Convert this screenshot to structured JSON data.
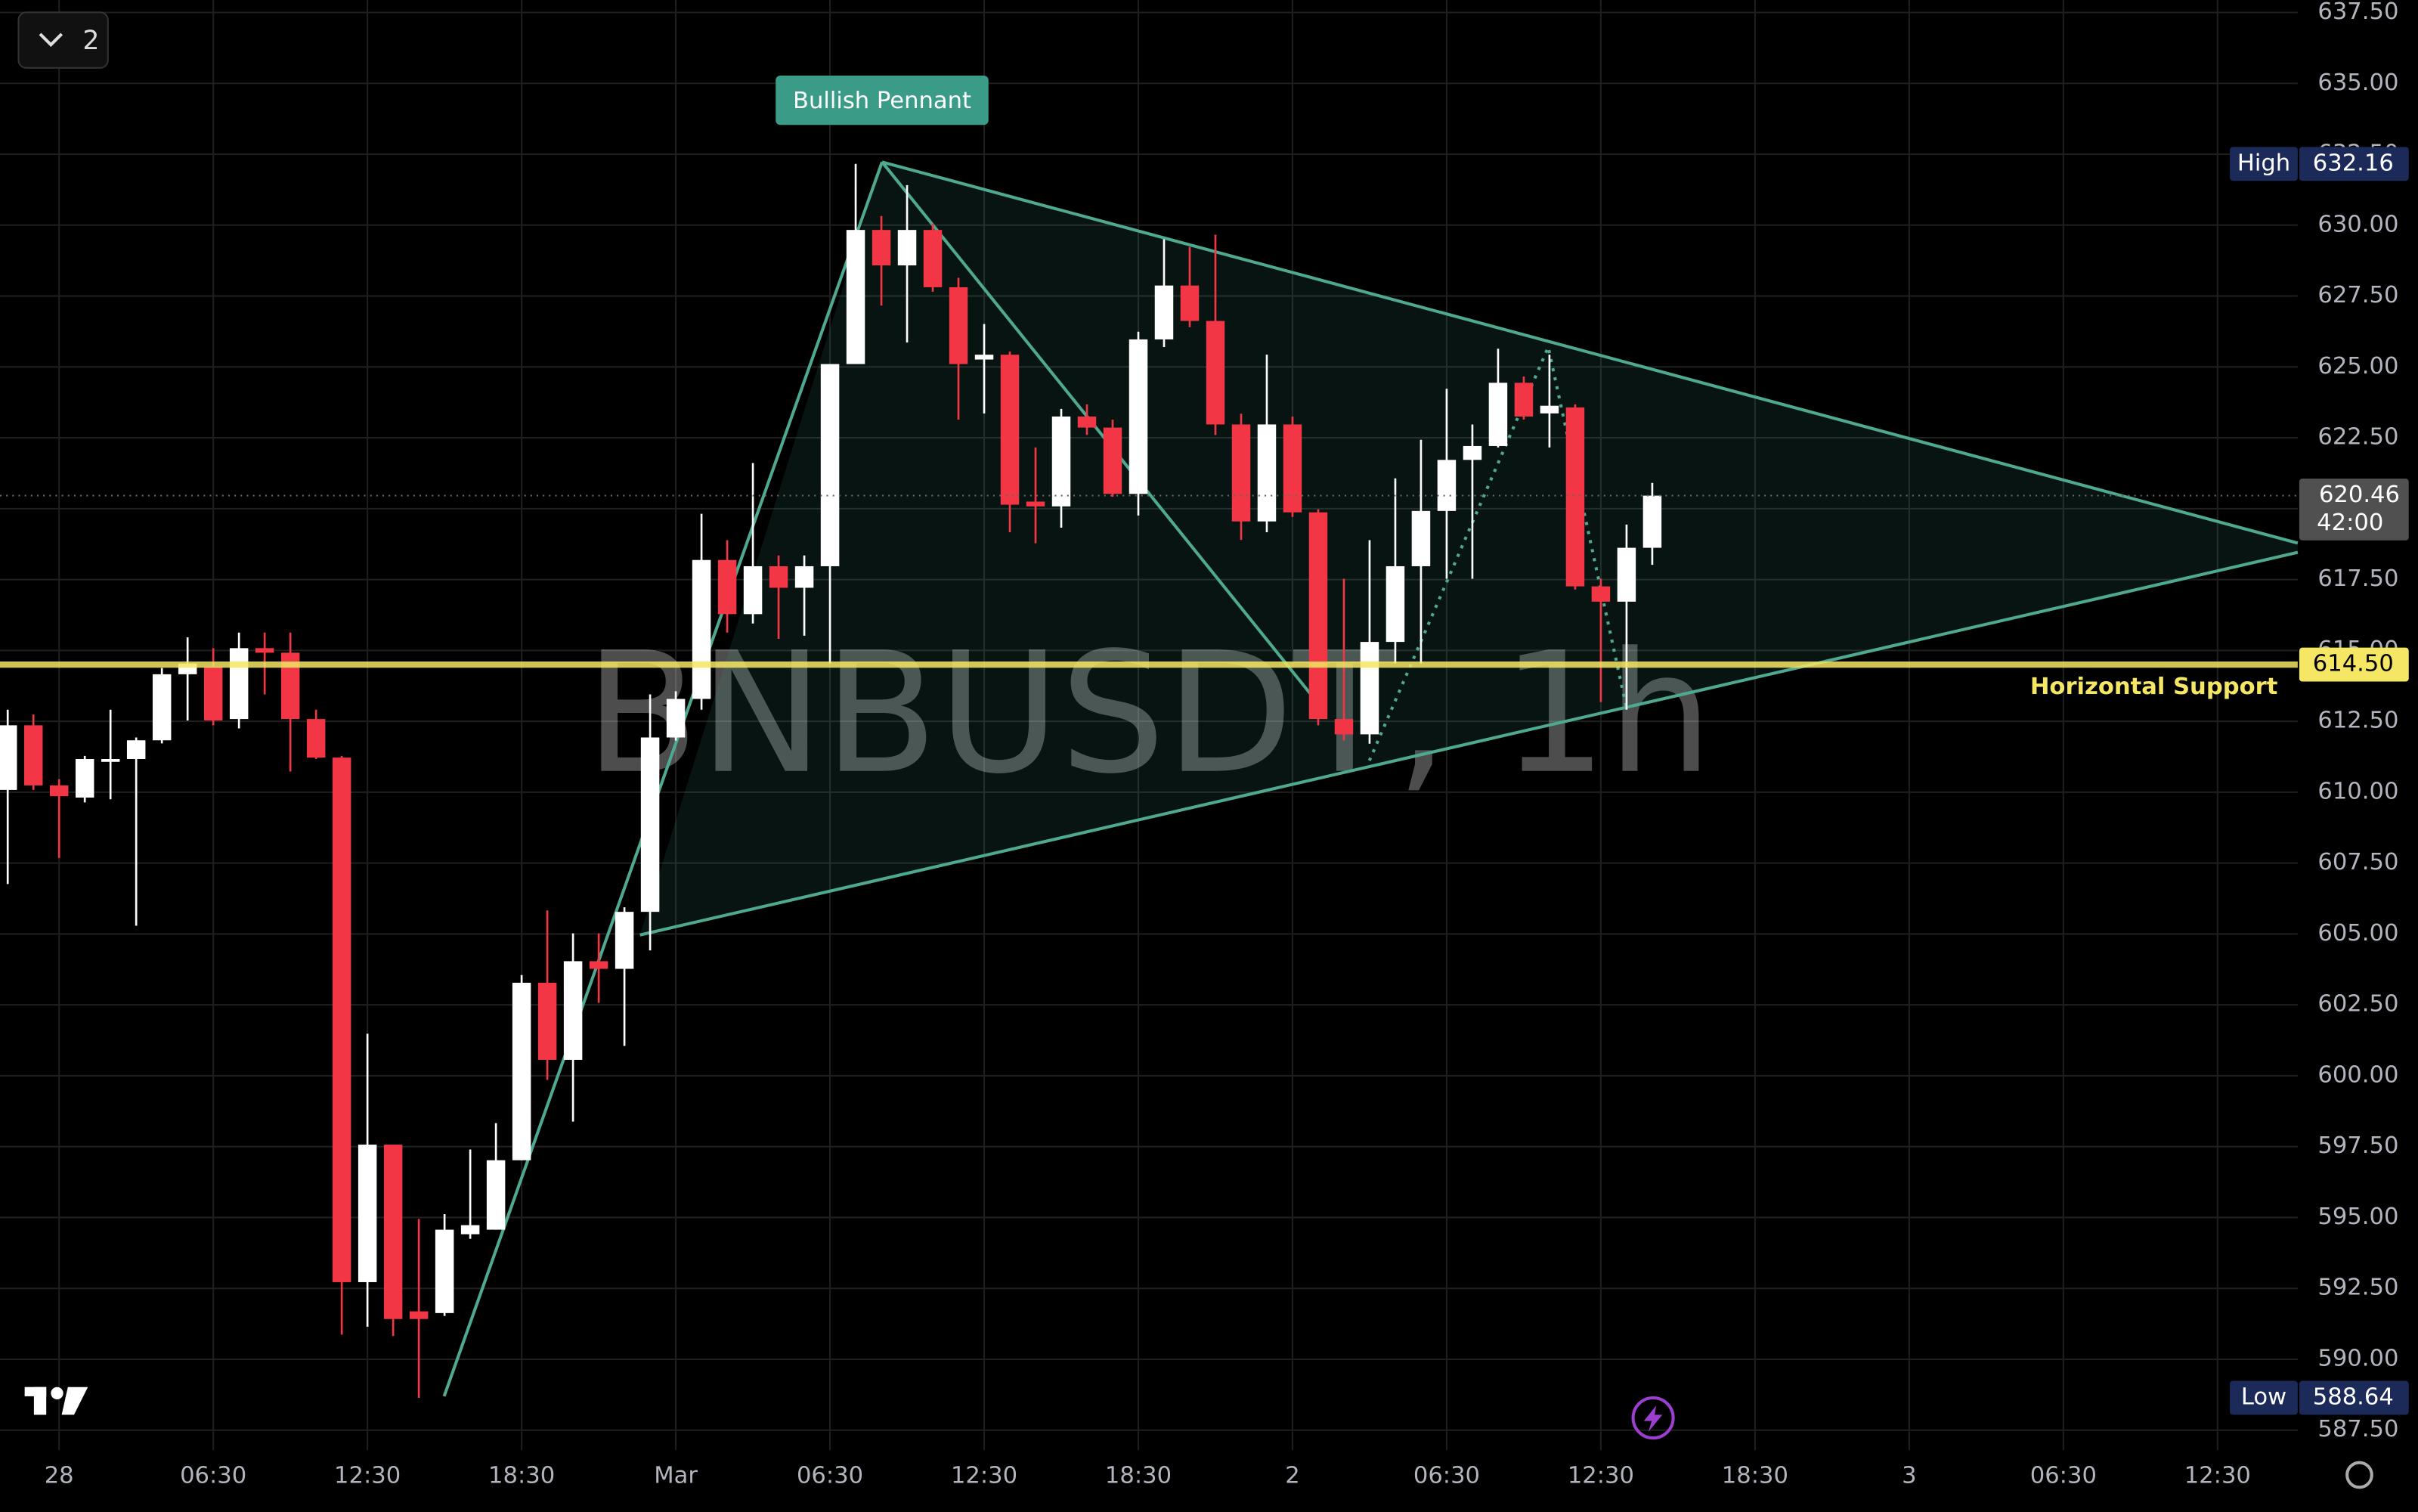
{
  "chart_data": {
    "type": "candlestick",
    "title": "BNBUSDT, 1h",
    "pattern_label": "Bullish Pennant",
    "collapsed_count": "2",
    "categories": [
      null,
      null,
      "28",
      null,
      null,
      null,
      null,
      null,
      "06:30",
      null,
      null,
      null,
      null,
      null,
      "12:30",
      null,
      null,
      null,
      null,
      null,
      "18:30",
      null,
      null,
      null,
      null,
      null,
      "Mar",
      null,
      null,
      null,
      null,
      null,
      "06:30",
      null,
      null,
      null,
      null,
      null,
      "12:30",
      null,
      null,
      null,
      null,
      null,
      "18:30",
      null,
      null,
      null,
      null,
      null,
      "2",
      null,
      null,
      null,
      null,
      null,
      "06:30",
      null,
      null,
      null,
      null,
      null,
      "12:30",
      null,
      null,
      null,
      null,
      null,
      "18:30",
      null,
      null,
      null,
      null,
      null,
      "3",
      null,
      null,
      null,
      null,
      null,
      "06:30",
      null,
      null,
      null,
      null,
      null,
      "12:30"
    ],
    "open": [
      610.08,
      612.36,
      610.24,
      609.81,
      611.07,
      611.17,
      611.83,
      614.16,
      614.43,
      612.58,
      615.08,
      614.92,
      612.58,
      611.22,
      592.72,
      597.57,
      591.69,
      591.63,
      594.41,
      594.57,
      597.02,
      603.28,
      600.56,
      604.04,
      603.77,
      605.78,
      611.93,
      613.29,
      618.19,
      616.28,
      617.97,
      617.21,
      617.97,
      625.1,
      629.83,
      628.58,
      629.83,
      627.81,
      625.26,
      625.43,
      620.25,
      620.08,
      623.25,
      622.86,
      620.52,
      625.97,
      627.87,
      626.62,
      622.97,
      619.55,
      622.97,
      619.87,
      612.58,
      612.04,
      615.3,
      617.97,
      619.92,
      621.72,
      622.21,
      624.44,
      623.36,
      623.57,
      617.26,
      616.72,
      618.62,
      null,
      null,
      null,
      null,
      null,
      null,
      null,
      null,
      null,
      null,
      null,
      null,
      null,
      null,
      null,
      null,
      null,
      null,
      null,
      null,
      null,
      null
    ],
    "high": [
      612.91,
      612.74,
      610.46,
      611.28,
      612.91,
      611.93,
      614.38,
      615.46,
      615.08,
      615.63,
      615.63,
      615.63,
      612.91,
      611.28,
      601.48,
      597.57,
      594.95,
      595.12,
      597.4,
      598.33,
      603.55,
      605.83,
      605.02,
      605.02,
      605.94,
      613.45,
      613.56,
      619.82,
      618.89,
      621.61,
      618.35,
      618.35,
      625.1,
      632.16,
      630.32,
      631.41,
      630.05,
      628.14,
      626.51,
      625.54,
      622.16,
      623.52,
      623.68,
      623.14,
      626.24,
      629.5,
      629.23,
      629.66,
      623.35,
      625.43,
      623.25,
      619.98,
      617.53,
      618.89,
      621.07,
      622.43,
      624.23,
      622.97,
      625.64,
      624.66,
      625.43,
      623.68,
      617.53,
      619.44,
      620.91,
      null,
      null,
      null,
      null,
      null,
      null,
      null,
      null,
      null,
      null,
      null,
      null,
      null,
      null,
      null,
      null,
      null,
      null,
      null,
      null,
      null,
      null
    ],
    "low": [
      606.76,
      610.08,
      607.68,
      609.64,
      609.75,
      605.29,
      611.72,
      612.53,
      612.36,
      612.25,
      613.45,
      610.73,
      611.17,
      590.87,
      591.15,
      590.82,
      588.64,
      591.53,
      594.25,
      594.57,
      597.02,
      599.85,
      598.38,
      602.57,
      601.05,
      604.42,
      611.82,
      612.91,
      615.63,
      615.95,
      615.41,
      615.52,
      614.54,
      625.1,
      627.16,
      625.86,
      627.65,
      623.14,
      623.36,
      619.17,
      618.78,
      619.33,
      622.6,
      620.42,
      619.76,
      625.7,
      626.4,
      622.6,
      618.9,
      619.17,
      619.71,
      612.36,
      611.82,
      611.71,
      614.54,
      614.54,
      617.53,
      617.53,
      622.16,
      623.14,
      622.16,
      617.15,
      613.18,
      612.91,
      618.02,
      null,
      null,
      null,
      null,
      null,
      null,
      null,
      null,
      null,
      null,
      null,
      null,
      null,
      null,
      null,
      null,
      null,
      null,
      null,
      null,
      null,
      null
    ],
    "close": [
      612.36,
      610.24,
      609.86,
      611.17,
      611.17,
      611.83,
      614.16,
      614.54,
      612.53,
      615.08,
      614.92,
      612.58,
      611.22,
      592.72,
      597.57,
      591.42,
      591.42,
      594.57,
      594.73,
      597.02,
      603.28,
      600.56,
      604.04,
      603.77,
      605.78,
      611.93,
      613.29,
      618.19,
      616.28,
      617.97,
      617.21,
      617.97,
      625.1,
      629.83,
      628.58,
      629.83,
      627.81,
      625.1,
      625.43,
      620.14,
      620.08,
      623.25,
      622.86,
      620.52,
      625.97,
      627.87,
      626.62,
      622.97,
      619.55,
      622.97,
      619.87,
      612.58,
      612.04,
      615.3,
      617.97,
      619.92,
      621.72,
      622.21,
      624.44,
      623.25,
      623.63,
      617.26,
      616.72,
      618.62,
      620.46,
      null,
      null,
      null,
      null,
      null,
      null,
      null,
      null,
      null,
      null,
      null,
      null,
      null,
      null,
      null,
      null,
      null,
      null,
      null,
      null,
      null,
      null
    ],
    "up_color": "#ffffff",
    "down_color": "#f23645",
    "ylim": [
      586.79,
      637.94
    ],
    "yticks": [
      {
        "value": 587.5,
        "label": "587.50"
      },
      {
        "value": 590,
        "label": "590.00"
      },
      {
        "value": 592.5,
        "label": "592.50"
      },
      {
        "value": 595,
        "label": "595.00"
      },
      {
        "value": 597.5,
        "label": "597.50"
      },
      {
        "value": 600,
        "label": "600.00"
      },
      {
        "value": 602.5,
        "label": "602.50"
      },
      {
        "value": 605,
        "label": "605.00"
      },
      {
        "value": 607.5,
        "label": "607.50"
      },
      {
        "value": 610,
        "label": "610.00"
      },
      {
        "value": 612.5,
        "label": "612.50"
      },
      {
        "value": 615,
        "label": "615.00"
      },
      {
        "value": 617.5,
        "label": "617.50"
      },
      {
        "value": 620,
        "label": "620.00"
      },
      {
        "value": 622.5,
        "label": "622.50"
      },
      {
        "value": 625,
        "label": "625.00"
      },
      {
        "value": 627.5,
        "label": "627.50"
      },
      {
        "value": 630,
        "label": "630.00"
      },
      {
        "value": 632.5,
        "label": "632.50"
      },
      {
        "value": 635,
        "label": "635.00"
      },
      {
        "value": 637.5,
        "label": "637.50"
      }
    ],
    "grid": true,
    "horizontal_support": {
      "name": "Horizontal Support",
      "value": 614.5,
      "value_label": "614.50",
      "color": "#f5e663"
    },
    "high_marker": {
      "name": "High",
      "value": 632.16,
      "value_label": "632.16"
    },
    "low_marker": {
      "name": "Low",
      "value": 588.64,
      "value_label": "588.64"
    },
    "last_price": {
      "value": 620.46,
      "value_label": "620.46",
      "countdown": "42:00"
    }
  }
}
